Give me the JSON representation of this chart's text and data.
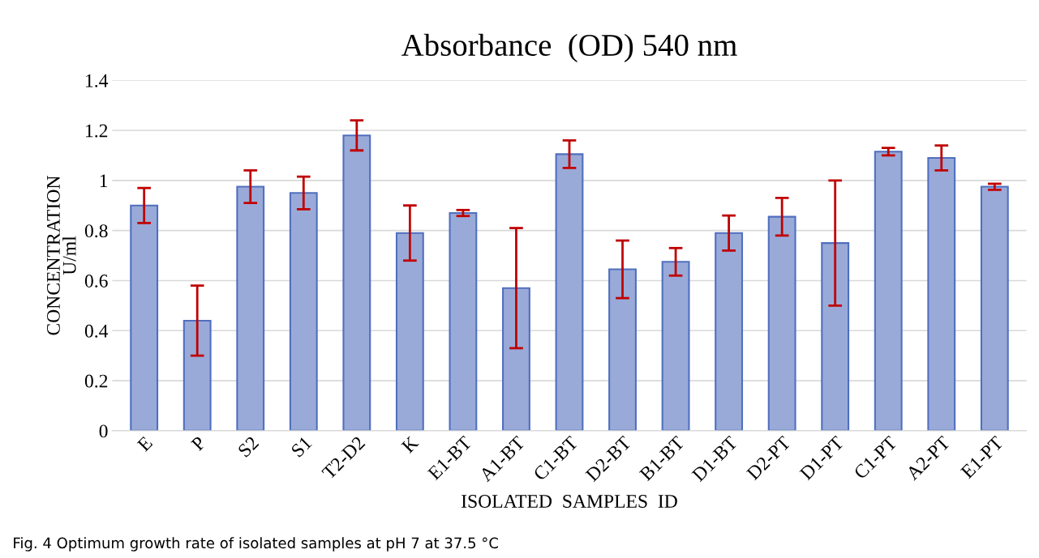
{
  "chart_data": {
    "type": "bar",
    "title": "Absorbance  (OD) 540 nm",
    "xlabel": "ISOLATED  SAMPLES  ID",
    "ylabel": "CONCENTRATION\nU/ml",
    "categories": [
      "E",
      "P",
      "S2",
      "S1",
      "T2-D2",
      "K",
      "E1-BT",
      "A1-BT",
      "C1-BT",
      "D2-BT",
      "B1-BT",
      "D1-BT",
      "D2-PT",
      "D1-PT",
      "C1-PT",
      "A2-PT",
      "E1-PT"
    ],
    "values": [
      0.9,
      0.44,
      0.975,
      0.95,
      1.18,
      0.79,
      0.87,
      0.57,
      1.105,
      0.645,
      0.675,
      0.79,
      0.855,
      0.75,
      1.115,
      1.09,
      0.975
    ],
    "errors": [
      0.07,
      0.14,
      0.065,
      0.065,
      0.06,
      0.11,
      0.012,
      0.24,
      0.055,
      0.115,
      0.055,
      0.07,
      0.075,
      0.25,
      0.015,
      0.05,
      0.012
    ],
    "color": "#9aaad8",
    "ylim": [
      0,
      1.4
    ],
    "yticks": [
      0,
      0.2,
      0.4,
      0.6,
      0.8,
      1,
      1.2,
      1.4
    ],
    "grid": "y",
    "annotations": [
      "Fig. 4 Optimum growth rate of isolated samples at pH 7 at 37.5 °C"
    ]
  }
}
